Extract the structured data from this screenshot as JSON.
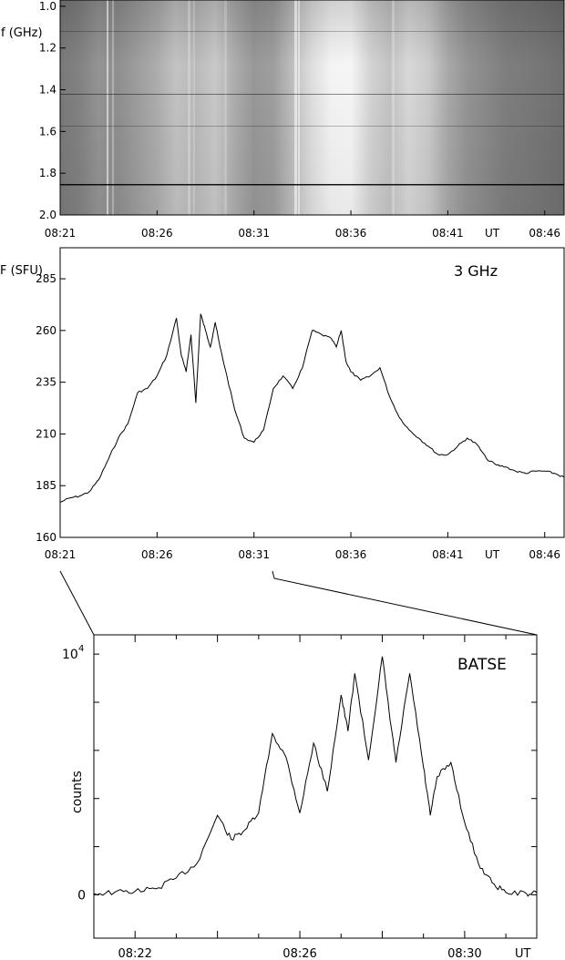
{
  "chart_data": [
    {
      "type": "heatmap",
      "ylabel": "f (GHz)",
      "y_ticks": [
        "1.0",
        "1.2",
        "1.4",
        "1.6",
        "1.8",
        "2.0"
      ],
      "y_tick_values": [
        1.0,
        1.2,
        1.4,
        1.6,
        1.8,
        2.0
      ],
      "ylim": [
        0.97,
        2.0
      ],
      "x_ticks": [
        "08:21",
        "08:26",
        "08:31",
        "08:36",
        "08:41",
        "08:46"
      ],
      "x_tick_values": [
        "08:21",
        "08:26",
        "08:31",
        "08:36",
        "08:41",
        "08:46"
      ],
      "x_unit": "UT",
      "xlim": [
        "08:21",
        "08:47"
      ],
      "colormap": "grayscale (darker = lower intensity, brighter = higher)",
      "intensity_profile": {
        "x": [
          "08:21",
          "08:22",
          "08:23",
          "08:24",
          "08:25",
          "08:26",
          "08:27",
          "08:28",
          "08:29",
          "08:30",
          "08:31",
          "08:32",
          "08:33",
          "08:34",
          "08:35",
          "08:36",
          "08:37",
          "08:38",
          "08:39",
          "08:40",
          "08:41",
          "08:42",
          "08:43",
          "08:44",
          "08:45",
          "08:46",
          "08:47"
        ],
        "values": [
          0.38,
          0.42,
          0.5,
          0.48,
          0.55,
          0.62,
          0.72,
          0.68,
          0.75,
          0.62,
          0.52,
          0.55,
          0.7,
          0.85,
          0.95,
          0.96,
          0.8,
          0.72,
          0.82,
          0.76,
          0.6,
          0.5,
          0.45,
          0.4,
          0.38,
          0.36,
          0.33
        ]
      }
    },
    {
      "type": "line",
      "ylabel": "F (SFU)",
      "annotation": "3 GHz",
      "x_ticks": [
        "08:21",
        "08:26",
        "08:31",
        "08:36",
        "08:41",
        "08:46"
      ],
      "x_unit": "UT",
      "xlim": [
        "08:21",
        "08:47"
      ],
      "y_ticks": [
        "160",
        "185",
        "210",
        "235",
        "260",
        "285"
      ],
      "ylim": [
        160,
        300
      ],
      "series": [
        {
          "x": [
            "08:21",
            "08:21:30",
            "08:22",
            "08:22:30",
            "08:23",
            "08:23:30",
            "08:24",
            "08:24:30",
            "08:25",
            "08:25:30",
            "08:26",
            "08:26:30",
            "08:27",
            "08:27:15",
            "08:27:30",
            "08:27:45",
            "08:28",
            "08:28:15",
            "08:28:30",
            "08:28:45",
            "08:29",
            "08:29:15",
            "08:29:30",
            "08:30",
            "08:30:30",
            "08:31",
            "08:31:30",
            "08:32",
            "08:32:30",
            "08:33",
            "08:33:30",
            "08:34",
            "08:34:30",
            "08:35",
            "08:35:15",
            "08:35:30",
            "08:35:45",
            "08:36",
            "08:36:30",
            "08:37",
            "08:37:30",
            "08:38",
            "08:38:30",
            "08:39",
            "08:39:30",
            "08:40",
            "08:40:30",
            "08:41",
            "08:41:30",
            "08:42",
            "08:42:30",
            "08:43",
            "08:43:30",
            "08:44",
            "08:44:30",
            "08:45",
            "08:45:30",
            "08:46",
            "08:46:30",
            "08:47"
          ],
          "values": [
            177,
            179,
            180,
            182,
            188,
            198,
            208,
            215,
            230,
            232,
            238,
            248,
            266,
            248,
            240,
            258,
            225,
            268,
            260,
            252,
            264,
            252,
            242,
            222,
            208,
            206,
            212,
            232,
            238,
            232,
            242,
            260,
            258,
            256,
            252,
            260,
            245,
            240,
            236,
            238,
            242,
            228,
            218,
            212,
            208,
            204,
            200,
            200,
            204,
            208,
            205,
            198,
            195,
            194,
            192,
            191,
            192,
            192,
            191,
            189
          ]
        }
      ]
    },
    {
      "type": "line",
      "ylabel": "counts",
      "annotation": "BATSE",
      "y_ticks": [
        "0"
      ],
      "y_top_tick": {
        "base": "10",
        "exponent": "4"
      },
      "y_tick_values": [
        0,
        10000
      ],
      "ylim": [
        -1800,
        10800
      ],
      "yscale": "linear",
      "x_ticks": [
        "08:22",
        "08:26",
        "08:30"
      ],
      "x_unit": "UT",
      "xlim": [
        "08:21",
        "08:31:45"
      ],
      "series": [
        {
          "x": [
            "08:21",
            "08:21:30",
            "08:22",
            "08:22:30",
            "08:23",
            "08:23:30",
            "08:24",
            "08:24:20",
            "08:24:40",
            "08:25",
            "08:25:20",
            "08:25:40",
            "08:26",
            "08:26:20",
            "08:26:40",
            "08:27",
            "08:27:10",
            "08:27:20",
            "08:27:40",
            "08:28",
            "08:28:10",
            "08:28:20",
            "08:28:40",
            "08:29",
            "08:29:10",
            "08:29:20",
            "08:29:40",
            "08:30",
            "08:30:20",
            "08:30:40",
            "08:31",
            "08:31:30",
            "08:31:45"
          ],
          "values": [
            50,
            100,
            150,
            250,
            700,
            1300,
            3300,
            2300,
            2700,
            3400,
            6700,
            5700,
            3400,
            6300,
            4300,
            8300,
            6800,
            9200,
            5600,
            9900,
            7600,
            5500,
            9200,
            5300,
            3300,
            4900,
            5500,
            3000,
            1300,
            500,
            100,
            50,
            80
          ]
        }
      ]
    }
  ]
}
